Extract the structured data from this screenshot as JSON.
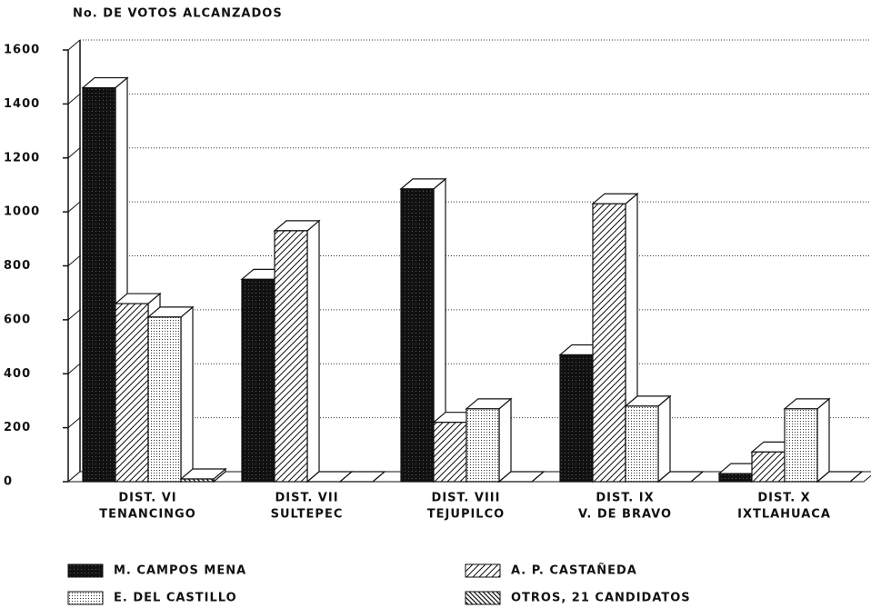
{
  "chart_data": {
    "type": "bar3d",
    "y_label": "No. DE VOTOS ALCANZADOS",
    "categories": [
      [
        "DIST. VI",
        "TENANCINGO"
      ],
      [
        "DIST. VII",
        "SULTEPEC"
      ],
      [
        "DIST. VIII",
        "TEJUPILCO"
      ],
      [
        "DIST. IX",
        "V. DE BRAVO"
      ],
      [
        "DIST. X",
        "IXTLAHUACA"
      ]
    ],
    "series": [
      {
        "name": "M. CAMPOS MENA",
        "color": "#111111",
        "fill": "solid",
        "values": [
          1460,
          750,
          1085,
          470,
          30
        ]
      },
      {
        "name": "A. P. CASTAÑEDA",
        "color": "#111111",
        "fill": "diagonal",
        "values": [
          660,
          930,
          220,
          1030,
          110
        ]
      },
      {
        "name": "E. DEL CASTILLO",
        "color": "#111111",
        "fill": "dots",
        "values": [
          610,
          0,
          270,
          280,
          270
        ]
      },
      {
        "name": "OTROS, 21 CANDIDATOS",
        "color": "#111111",
        "fill": "backdiagonal",
        "values": [
          10,
          0,
          0,
          0,
          0
        ]
      }
    ],
    "ylim": [
      0,
      1600
    ],
    "yticks": [
      0,
      200,
      400,
      600,
      800,
      1000,
      1200,
      1400,
      1600
    ],
    "grid": true
  }
}
